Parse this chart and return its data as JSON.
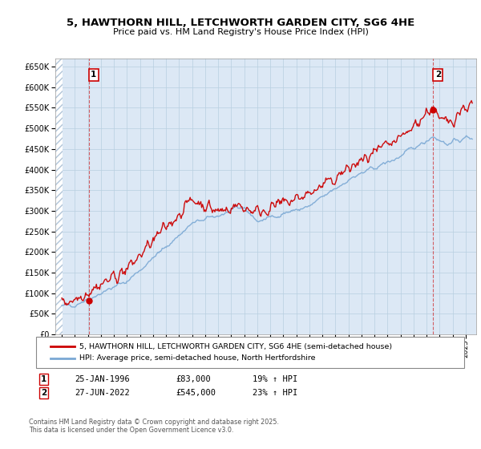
{
  "title": "5, HAWTHORN HILL, LETCHWORTH GARDEN CITY, SG6 4HE",
  "subtitle": "Price paid vs. HM Land Registry's House Price Index (HPI)",
  "legend_line1": "5, HAWTHORN HILL, LETCHWORTH GARDEN CITY, SG6 4HE (semi-detached house)",
  "legend_line2": "HPI: Average price, semi-detached house, North Hertfordshire",
  "annotation1_date": "25-JAN-1996",
  "annotation1_price": "£83,000",
  "annotation1_hpi": "19% ↑ HPI",
  "annotation2_date": "27-JUN-2022",
  "annotation2_price": "£545,000",
  "annotation2_hpi": "23% ↑ HPI",
  "footer": "Contains HM Land Registry data © Crown copyright and database right 2025.\nThis data is licensed under the Open Government Licence v3.0.",
  "sale1_x": 1996.07,
  "sale1_y": 83000,
  "sale2_x": 2022.49,
  "sale2_y": 545000,
  "red_color": "#cc0000",
  "blue_color": "#7aa8d4",
  "bg_color": "#dce8f5",
  "hatch_color": "#b0c4d8",
  "grid_color": "#b8cfe0",
  "ylim": [
    0,
    670000
  ],
  "xlim_start": 1993.5,
  "xlim_end": 2025.8
}
